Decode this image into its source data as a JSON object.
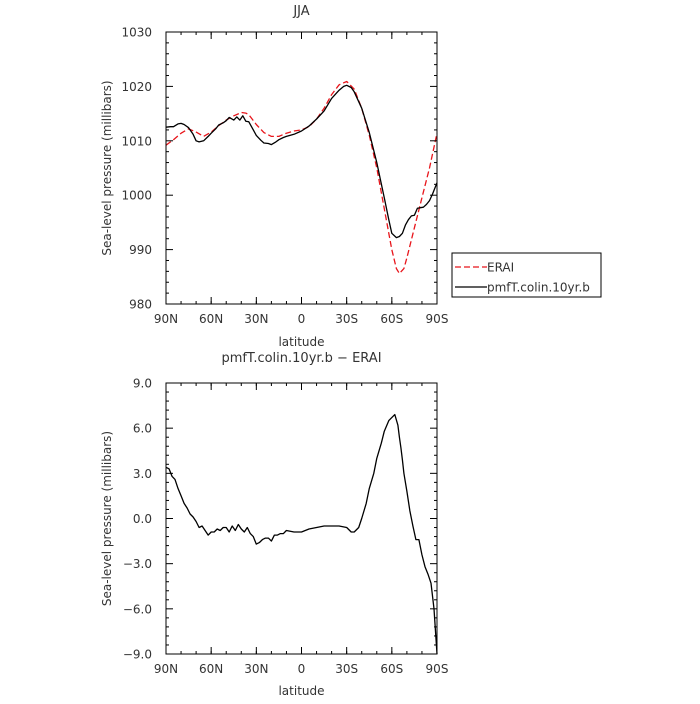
{
  "chart_data": [
    {
      "type": "line",
      "title": "JJA",
      "xlabel": "latitude",
      "ylabel": "Sea-level pressure (millibars)",
      "xlim": [
        90,
        -90
      ],
      "ylim": [
        980,
        1030
      ],
      "xticks": [
        90,
        60,
        30,
        0,
        -30,
        -60,
        -90
      ],
      "xtick_labels": [
        "90N",
        "60N",
        "30N",
        "0",
        "30S",
        "60S",
        "90S"
      ],
      "yticks": [
        980,
        990,
        1000,
        1010,
        1020,
        1030
      ],
      "ytick_labels": [
        "980",
        "990",
        "1000",
        "1010",
        "1020",
        "1030"
      ],
      "legend": "right",
      "series": [
        {
          "name": "ERAI",
          "color": "#e8151b",
          "dash": "dashed",
          "x": [
            90,
            85,
            80,
            75,
            70,
            65,
            60,
            55,
            50,
            45,
            40,
            37,
            35,
            30,
            25,
            20,
            15,
            10,
            5,
            0,
            -5,
            -10,
            -15,
            -20,
            -25,
            -30,
            -35,
            -40,
            -45,
            -50,
            -55,
            -60,
            -63,
            -65,
            -68,
            -70,
            -75,
            -80,
            -85,
            -90
          ],
          "values": [
            1009.2,
            1010.2,
            1011.4,
            1012.2,
            1011.6,
            1010.8,
            1011.6,
            1012.8,
            1013.8,
            1014.6,
            1015.2,
            1015.1,
            1014.8,
            1013.0,
            1011.5,
            1010.8,
            1010.8,
            1011.4,
            1011.8,
            1012.0,
            1012.6,
            1014.0,
            1016.0,
            1018.5,
            1020.3,
            1020.9,
            1019.5,
            1016.0,
            1011.0,
            1005.0,
            997.5,
            990.0,
            986.5,
            985.6,
            986.5,
            988.5,
            994.0,
            999.5,
            1005.0,
            1011.4
          ]
        },
        {
          "name": "pmfT.colin.10yr.b",
          "color": "#000000",
          "dash": "solid",
          "x": [
            90,
            87,
            85,
            82,
            80,
            78,
            75,
            72,
            70,
            68,
            65,
            62,
            60,
            57,
            55,
            52,
            50,
            48,
            45,
            43,
            41,
            39,
            37,
            35,
            33,
            30,
            27,
            25,
            22,
            20,
            17,
            15,
            12,
            10,
            5,
            0,
            -5,
            -10,
            -15,
            -20,
            -25,
            -28,
            -30,
            -33,
            -35,
            -40,
            -45,
            -50,
            -55,
            -58,
            -60,
            -63,
            -65,
            -67,
            -69,
            -71,
            -73,
            -75,
            -77,
            -79,
            -81,
            -83,
            -85,
            -87,
            -90
          ],
          "values": [
            1012.5,
            1012.6,
            1012.6,
            1013.1,
            1013.2,
            1013.0,
            1012.4,
            1011.2,
            1010.0,
            1009.8,
            1010.0,
            1010.8,
            1011.4,
            1012.2,
            1012.9,
            1013.3,
            1013.7,
            1014.3,
            1013.8,
            1014.4,
            1013.8,
            1014.6,
            1013.6,
            1013.5,
            1012.5,
            1011.0,
            1010.1,
            1009.6,
            1009.5,
            1009.3,
            1009.8,
            1010.2,
            1010.6,
            1010.8,
            1011.2,
            1011.8,
            1012.7,
            1014.0,
            1015.5,
            1017.8,
            1019.3,
            1020.0,
            1020.2,
            1019.8,
            1019.0,
            1016.0,
            1011.5,
            1006.0,
            999.5,
            995.5,
            993.0,
            992.2,
            992.4,
            993.0,
            994.5,
            995.5,
            996.2,
            996.3,
            997.6,
            997.7,
            997.8,
            998.3,
            999.0,
            1000.2,
            1002.3
          ]
        }
      ]
    },
    {
      "type": "line",
      "title": "pmfT.colin.10yr.b  −  ERAI",
      "xlabel": "latitude",
      "ylabel": "Sea-level pressure (millibars)",
      "xlim": [
        90,
        -90
      ],
      "ylim": [
        -9.0,
        9.0
      ],
      "xticks": [
        90,
        60,
        30,
        0,
        -30,
        -60,
        -90
      ],
      "xtick_labels": [
        "90N",
        "60N",
        "30N",
        "0",
        "30S",
        "60S",
        "90S"
      ],
      "yticks": [
        -9,
        -6,
        -3,
        0,
        3,
        6,
        9
      ],
      "ytick_labels": [
        "−9.0",
        "−6.0",
        "−3.0",
        "0.0",
        "3.0",
        "6.0",
        "9.0"
      ],
      "series": [
        {
          "color": "#000000",
          "dash": "solid",
          "x": [
            90,
            88,
            86,
            84,
            82,
            80,
            78,
            76,
            74,
            72,
            70,
            68,
            66,
            64,
            62,
            60,
            58,
            56,
            54,
            52,
            50,
            48,
            46,
            44,
            42,
            40,
            38,
            36,
            34,
            32,
            30,
            28,
            26,
            24,
            22,
            20,
            18,
            16,
            14,
            12,
            10,
            5,
            0,
            -5,
            -10,
            -15,
            -20,
            -25,
            -30,
            -33,
            -35,
            -38,
            -40,
            -43,
            -45,
            -48,
            -50,
            -53,
            -55,
            -58,
            -60,
            -62,
            -64,
            -65,
            -66,
            -67,
            -68,
            -70,
            -72,
            -74,
            -76,
            -78,
            -80,
            -82,
            -84,
            -86,
            -88,
            -90
          ],
          "values": [
            3.4,
            3.3,
            2.8,
            2.6,
            2.0,
            1.5,
            1.0,
            0.7,
            0.3,
            0.1,
            -0.2,
            -0.6,
            -0.5,
            -0.8,
            -1.1,
            -0.9,
            -0.9,
            -0.7,
            -0.8,
            -0.6,
            -0.6,
            -0.9,
            -0.5,
            -0.8,
            -0.4,
            -0.7,
            -0.9,
            -0.6,
            -1.0,
            -1.2,
            -1.7,
            -1.6,
            -1.4,
            -1.3,
            -1.3,
            -1.5,
            -1.1,
            -1.1,
            -1.0,
            -1.0,
            -0.8,
            -0.9,
            -0.9,
            -0.7,
            -0.6,
            -0.5,
            -0.5,
            -0.5,
            -0.6,
            -0.9,
            -0.9,
            -0.6,
            0.0,
            1.0,
            2.0,
            3.0,
            4.0,
            5.0,
            5.8,
            6.5,
            6.7,
            6.9,
            6.2,
            5.4,
            4.7,
            3.9,
            3.0,
            1.8,
            0.5,
            -0.5,
            -1.4,
            -1.4,
            -2.4,
            -3.2,
            -3.7,
            -4.3,
            -6.0,
            -9.0
          ]
        }
      ]
    }
  ]
}
